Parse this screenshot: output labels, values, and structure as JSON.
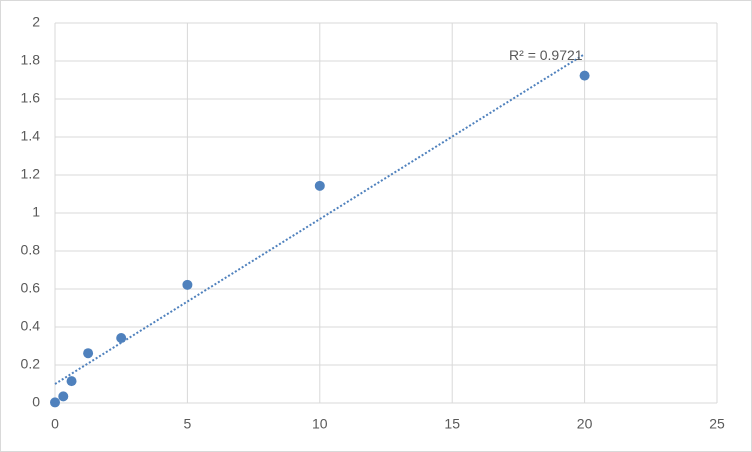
{
  "chart_data": {
    "type": "scatter",
    "x": [
      0,
      0.3125,
      0.625,
      1.25,
      2.5,
      5,
      10,
      20
    ],
    "series": [
      {
        "color": "#4f81bd",
        "values": [
          0.003,
          0.035,
          0.115,
          0.262,
          0.342,
          0.622,
          1.143,
          1.723
        ]
      }
    ],
    "xlim": [
      0,
      25
    ],
    "xticks": [
      0,
      5,
      10,
      15,
      20,
      25
    ],
    "ylim": [
      0,
      2
    ],
    "yticks": [
      0,
      0.2,
      0.4,
      0.6,
      0.8,
      1,
      1.2,
      1.4,
      1.6,
      1.8,
      2
    ],
    "grid": true,
    "trendline": {
      "type": "linear",
      "label": "R² = 0.9721",
      "color": "#4f81bd"
    }
  }
}
